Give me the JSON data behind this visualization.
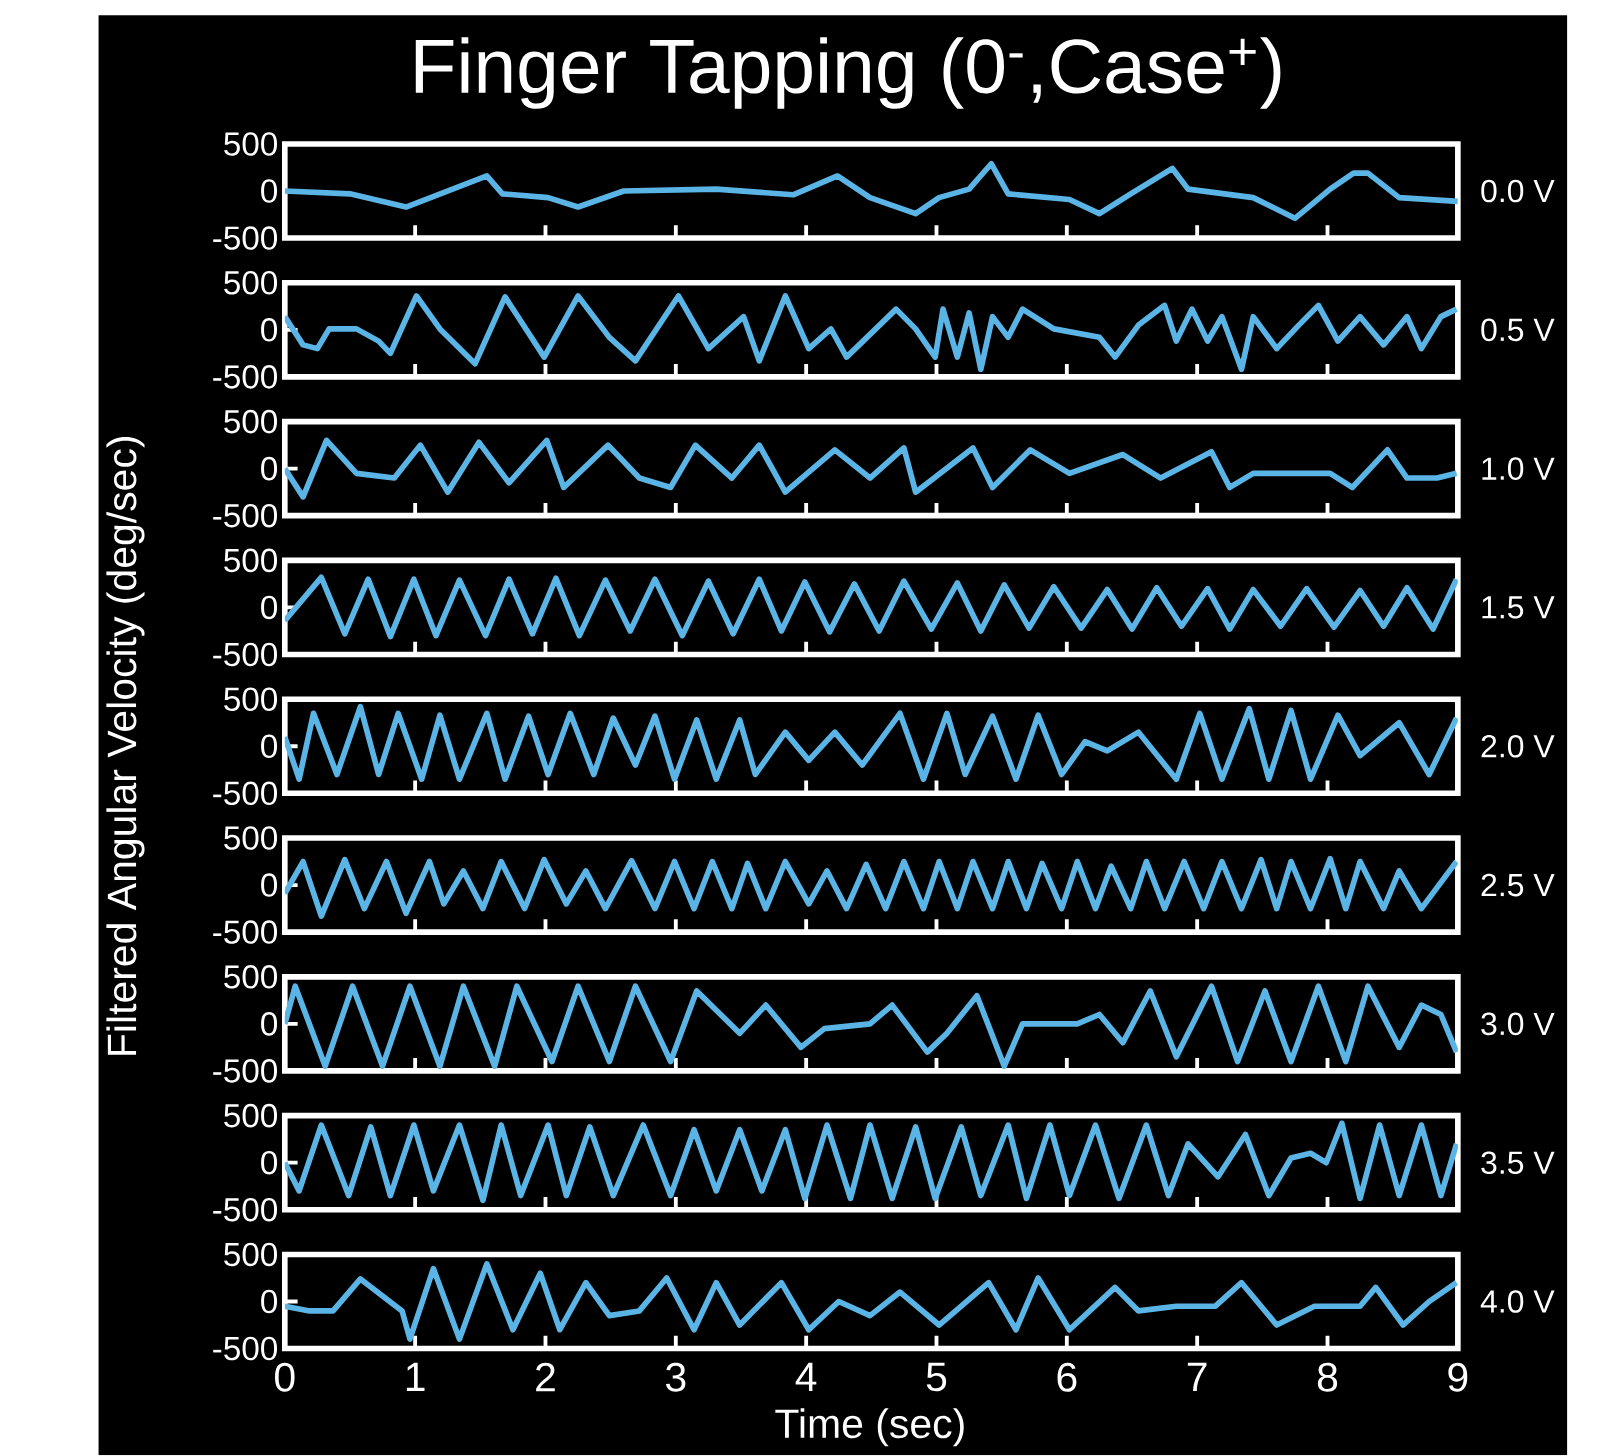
{
  "chart_data": [
    {
      "type": "line",
      "title": "Finger Tapping (0$^{-}$,Case$^{+}$)",
      "annotations": [
        "0.0 V"
      ],
      "color": "#5ab4e5",
      "xlim": [
        0,
        9
      ],
      "ylim": [
        -500,
        500
      ],
      "xticks": [
        0,
        1,
        2,
        3,
        4,
        5,
        6,
        7,
        8,
        9
      ],
      "yticks": [
        -500,
        0,
        500
      ],
      "tick_labels": "y",
      "x": [
        0,
        0.5,
        0.93,
        1.55,
        1.67,
        2.02,
        2.25,
        2.6,
        3.31,
        3.9,
        4.24,
        4.49,
        4.84,
        5.02,
        5.25,
        5.42,
        5.55,
        6.02,
        6.25,
        6.49,
        6.81,
        6.93,
        7.43,
        7.75,
        8.02,
        8.2,
        8.31,
        8.55,
        9
      ],
      "values": [
        0,
        -30,
        -170,
        160,
        -30,
        -70,
        -170,
        0,
        20,
        -40,
        160,
        -70,
        -240,
        -70,
        20,
        290,
        -30,
        -90,
        -240,
        -30,
        240,
        20,
        -70,
        -290,
        20,
        190,
        190,
        -70,
        -110
      ]
    },
    {
      "type": "line",
      "annotations": [
        "0.5 V"
      ],
      "color": "#5ab4e5",
      "xlim": [
        0,
        9
      ],
      "ylim": [
        -500,
        500
      ],
      "xticks": [
        0,
        1,
        2,
        3,
        4,
        5,
        6,
        7,
        8,
        9
      ],
      "yticks": [
        -500,
        0,
        500
      ],
      "tick_labels": "y",
      "x": [
        0,
        0.14,
        0.25,
        0.34,
        0.55,
        0.72,
        0.81,
        1.01,
        1.19,
        1.46,
        1.69,
        1.99,
        2.25,
        2.49,
        2.69,
        3.02,
        3.25,
        3.52,
        3.64,
        3.84,
        4.02,
        4.19,
        4.31,
        4.69,
        4.84,
        4.99,
        5.05,
        5.16,
        5.25,
        5.34,
        5.43,
        5.55,
        5.66,
        5.9,
        6.25,
        6.37,
        6.55,
        6.75,
        6.84,
        6.96,
        7.08,
        7.19,
        7.34,
        7.43,
        7.61,
        7.78,
        7.93,
        8.08,
        8.25,
        8.43,
        8.61,
        8.72,
        8.87,
        8.99
      ],
      "values": [
        140,
        -160,
        -200,
        10,
        10,
        -120,
        -250,
        360,
        10,
        -360,
        350,
        -290,
        360,
        -80,
        -330,
        360,
        -200,
        140,
        -330,
        360,
        -200,
        10,
        -290,
        220,
        10,
        -290,
        220,
        -290,
        180,
        -420,
        140,
        -80,
        220,
        10,
        -80,
        -290,
        50,
        260,
        -120,
        220,
        -120,
        140,
        -420,
        140,
        -200,
        50,
        260,
        -120,
        140,
        -160,
        140,
        -200,
        140,
        220
      ]
    },
    {
      "type": "line",
      "annotations": [
        "1.0 V"
      ],
      "color": "#5ab4e5",
      "xlim": [
        0,
        9
      ],
      "ylim": [
        -500,
        500
      ],
      "xticks": [
        0,
        1,
        2,
        3,
        4,
        5,
        6,
        7,
        8,
        9
      ],
      "yticks": [
        -500,
        0,
        500
      ],
      "tick_labels": "y",
      "x": [
        0,
        0.14,
        0.32,
        0.55,
        0.84,
        1.04,
        1.25,
        1.49,
        1.72,
        2.01,
        2.14,
        2.48,
        2.72,
        2.96,
        3.15,
        3.43,
        3.64,
        3.84,
        4.22,
        4.49,
        4.75,
        4.84,
        5.28,
        5.43,
        5.72,
        6.02,
        6.43,
        6.72,
        7.11,
        7.25,
        7.43,
        8.02,
        8.19,
        8.46,
        8.61,
        8.84,
        8.99
      ],
      "values": [
        0,
        -300,
        300,
        -50,
        -100,
        250,
        -250,
        280,
        -150,
        300,
        -200,
        250,
        -100,
        -200,
        250,
        -100,
        250,
        -250,
        200,
        -100,
        220,
        -250,
        220,
        -200,
        200,
        -50,
        150,
        -100,
        180,
        -200,
        -50,
        -50,
        -200,
        200,
        -100,
        -100,
        -50
      ]
    },
    {
      "type": "line",
      "annotations": [
        "1.5 V"
      ],
      "color": "#5ab4e5",
      "xlim": [
        0,
        9
      ],
      "ylim": [
        -500,
        500
      ],
      "xticks": [
        0,
        1,
        2,
        3,
        4,
        5,
        6,
        7,
        8,
        9
      ],
      "yticks": [
        -500,
        0,
        500
      ],
      "tick_labels": "y",
      "x": [
        0,
        0.28,
        0.46,
        0.64,
        0.81,
        0.99,
        1.16,
        1.34,
        1.54,
        1.72,
        1.9,
        2.08,
        2.26,
        2.46,
        2.65,
        2.84,
        3.05,
        3.25,
        3.44,
        3.64,
        3.81,
        3.99,
        4.18,
        4.37,
        4.56,
        4.75,
        4.96,
        5.16,
        5.34,
        5.52,
        5.71,
        5.9,
        6.11,
        6.31,
        6.5,
        6.69,
        6.88,
        7.08,
        7.25,
        7.43,
        7.64,
        7.84,
        8.05,
        8.25,
        8.43,
        8.61,
        8.81,
        8.99
      ],
      "values": [
        -140,
        320,
        -280,
        300,
        -310,
        300,
        -300,
        290,
        -300,
        300,
        -280,
        310,
        -300,
        290,
        -250,
        300,
        -300,
        280,
        -280,
        300,
        -250,
        270,
        -260,
        250,
        -250,
        280,
        -230,
        260,
        -250,
        240,
        -220,
        220,
        -220,
        190,
        -230,
        210,
        -200,
        200,
        -230,
        190,
        -200,
        200,
        -210,
        180,
        -200,
        210,
        -230,
        300
      ]
    },
    {
      "type": "line",
      "annotations": [
        "2.0 V"
      ],
      "ylabel": "Filtered Angular Velocity (deg/sec)",
      "color": "#5ab4e5",
      "xlim": [
        0,
        9
      ],
      "ylim": [
        -500,
        500
      ],
      "xticks": [
        0,
        1,
        2,
        3,
        4,
        5,
        6,
        7,
        8,
        9
      ],
      "yticks": [
        -500,
        0,
        500
      ],
      "tick_labels": "y",
      "x": [
        0,
        0.11,
        0.22,
        0.4,
        0.58,
        0.72,
        0.87,
        1.05,
        1.19,
        1.34,
        1.55,
        1.69,
        1.87,
        2.02,
        2.19,
        2.37,
        2.52,
        2.69,
        2.84,
        2.99,
        3.16,
        3.31,
        3.49,
        3.61,
        3.84,
        4.02,
        4.22,
        4.43,
        4.72,
        4.9,
        5.08,
        5.22,
        5.43,
        5.61,
        5.78,
        5.96,
        6.14,
        6.31,
        6.55,
        6.84,
        7.02,
        7.19,
        7.4,
        7.55,
        7.72,
        7.87,
        8.08,
        8.25,
        8.55,
        8.78,
        8.99
      ],
      "values": [
        100,
        -350,
        350,
        -300,
        420,
        -300,
        350,
        -350,
        330,
        -350,
        350,
        -350,
        320,
        -300,
        350,
        -300,
        300,
        -200,
        320,
        -350,
        280,
        -350,
        280,
        -300,
        150,
        -150,
        150,
        -200,
        350,
        -350,
        350,
        -300,
        320,
        -350,
        330,
        -300,
        50,
        -50,
        150,
        -350,
        350,
        -350,
        400,
        -350,
        380,
        -350,
        330,
        -100,
        250,
        -300,
        300
      ]
    },
    {
      "type": "line",
      "annotations": [
        "2.5 V"
      ],
      "color": "#5ab4e5",
      "xlim": [
        0,
        9
      ],
      "ylim": [
        -500,
        500
      ],
      "xticks": [
        0,
        1,
        2,
        3,
        4,
        5,
        6,
        7,
        8,
        9
      ],
      "yticks": [
        -500,
        0,
        500
      ],
      "tick_labels": "y",
      "x": [
        0,
        0.14,
        0.28,
        0.46,
        0.61,
        0.78,
        0.93,
        1.11,
        1.22,
        1.37,
        1.52,
        1.66,
        1.84,
        1.99,
        2.16,
        2.31,
        2.46,
        2.66,
        2.84,
        2.99,
        3.14,
        3.28,
        3.43,
        3.55,
        3.69,
        3.84,
        4.02,
        4.16,
        4.31,
        4.46,
        4.61,
        4.75,
        4.9,
        5.02,
        5.16,
        5.28,
        5.43,
        5.55,
        5.69,
        5.81,
        5.96,
        6.08,
        6.22,
        6.34,
        6.49,
        6.61,
        6.75,
        6.9,
        7.05,
        7.19,
        7.34,
        7.49,
        7.61,
        7.72,
        7.87,
        8.02,
        8.14,
        8.25,
        8.43,
        8.55,
        8.72,
        8.99
      ],
      "values": [
        -90,
        250,
        -330,
        270,
        -250,
        250,
        -300,
        250,
        -200,
        150,
        -250,
        250,
        -250,
        270,
        -200,
        150,
        -250,
        260,
        -250,
        250,
        -250,
        250,
        -250,
        230,
        -250,
        250,
        -200,
        150,
        -250,
        220,
        -250,
        250,
        -250,
        250,
        -250,
        250,
        -250,
        250,
        -250,
        230,
        -250,
        250,
        -250,
        200,
        -250,
        250,
        -250,
        250,
        -250,
        250,
        -250,
        270,
        -250,
        250,
        -250,
        280,
        -250,
        250,
        -250,
        150,
        -250,
        250
      ]
    },
    {
      "type": "line",
      "annotations": [
        "3.0 V"
      ],
      "color": "#5ab4e5",
      "xlim": [
        0,
        9
      ],
      "ylim": [
        -500,
        500
      ],
      "xticks": [
        0,
        1,
        2,
        3,
        4,
        5,
        6,
        7,
        8,
        9
      ],
      "yticks": [
        -500,
        0,
        500
      ],
      "tick_labels": "y",
      "x": [
        0,
        0.08,
        0.31,
        0.52,
        0.75,
        0.96,
        1.19,
        1.37,
        1.61,
        1.78,
        2.05,
        2.25,
        2.49,
        2.69,
        2.96,
        3.16,
        3.49,
        3.69,
        3.96,
        4.14,
        4.49,
        4.66,
        4.93,
        5.08,
        5.31,
        5.52,
        5.66,
        6.08,
        6.25,
        6.43,
        6.64,
        6.84,
        7.11,
        7.31,
        7.52,
        7.72,
        7.93,
        8.14,
        8.31,
        8.55,
        8.72,
        8.87,
        8.99
      ],
      "values": [
        0,
        400,
        -450,
        400,
        -450,
        400,
        -450,
        400,
        -450,
        400,
        -400,
        400,
        -400,
        400,
        -400,
        350,
        -100,
        200,
        -250,
        -50,
        0,
        200,
        -300,
        -100,
        300,
        -450,
        0,
        0,
        100,
        -200,
        350,
        -350,
        400,
        -400,
        350,
        -400,
        400,
        -400,
        400,
        -250,
        200,
        100,
        -300
      ]
    },
    {
      "type": "line",
      "annotations": [
        "3.5 V"
      ],
      "color": "#5ab4e5",
      "xlim": [
        0,
        9
      ],
      "ylim": [
        -500,
        500
      ],
      "xticks": [
        0,
        1,
        2,
        3,
        4,
        5,
        6,
        7,
        8,
        9
      ],
      "yticks": [
        -500,
        0,
        500
      ],
      "tick_labels": "y",
      "x": [
        0,
        0.11,
        0.28,
        0.49,
        0.66,
        0.81,
        0.99,
        1.14,
        1.34,
        1.52,
        1.66,
        1.81,
        2.02,
        2.16,
        2.34,
        2.52,
        2.75,
        2.96,
        3.14,
        3.31,
        3.49,
        3.66,
        3.84,
        3.99,
        4.16,
        4.34,
        4.49,
        4.66,
        4.84,
        4.99,
        5.19,
        5.34,
        5.55,
        5.69,
        5.87,
        6.02,
        6.22,
        6.4,
        6.61,
        6.78,
        6.93,
        7.16,
        7.37,
        7.55,
        7.72,
        7.87,
        7.99,
        8.11,
        8.25,
        8.4,
        8.55,
        8.72,
        8.87,
        8.99
      ],
      "values": [
        0,
        -300,
        400,
        -350,
        380,
        -350,
        400,
        -300,
        400,
        -400,
        400,
        -350,
        400,
        -350,
        380,
        -350,
        400,
        -350,
        350,
        -300,
        350,
        -300,
        350,
        -380,
        400,
        -380,
        400,
        -380,
        380,
        -380,
        380,
        -350,
        400,
        -380,
        400,
        -350,
        400,
        -380,
        400,
        -350,
        200,
        -150,
        300,
        -350,
        50,
        100,
        0,
        420,
        -380,
        400,
        -350,
        400,
        -350,
        200
      ]
    },
    {
      "type": "line",
      "annotations": [
        "4.0 V"
      ],
      "xlabel": "Time (sec)",
      "color": "#5ab4e5",
      "xlim": [
        0,
        9
      ],
      "ylim": [
        -500,
        500
      ],
      "xticks": [
        0,
        1,
        2,
        3,
        4,
        5,
        6,
        7,
        8,
        9
      ],
      "yticks": [
        -500,
        0,
        500
      ],
      "x": [
        0,
        0.19,
        0.37,
        0.58,
        0.9,
        0.96,
        1.14,
        1.34,
        1.55,
        1.75,
        1.96,
        2.11,
        2.31,
        2.49,
        2.72,
        2.93,
        3.14,
        3.31,
        3.49,
        3.81,
        4.02,
        4.25,
        4.49,
        4.72,
        5.02,
        5.4,
        5.61,
        5.78,
        6.02,
        6.37,
        6.55,
        6.84,
        7.14,
        7.34,
        7.61,
        7.9,
        8.25,
        8.37,
        8.58,
        8.78,
        8.99
      ],
      "values": [
        -50,
        -100,
        -100,
        240,
        -100,
        -400,
        350,
        -400,
        400,
        -300,
        300,
        -300,
        200,
        -150,
        -100,
        250,
        -300,
        200,
        -250,
        200,
        -300,
        0,
        -150,
        100,
        -250,
        200,
        -300,
        250,
        -300,
        150,
        -100,
        -50,
        -50,
        200,
        -250,
        -50,
        -50,
        150,
        -250,
        0,
        200
      ]
    }
  ]
}
